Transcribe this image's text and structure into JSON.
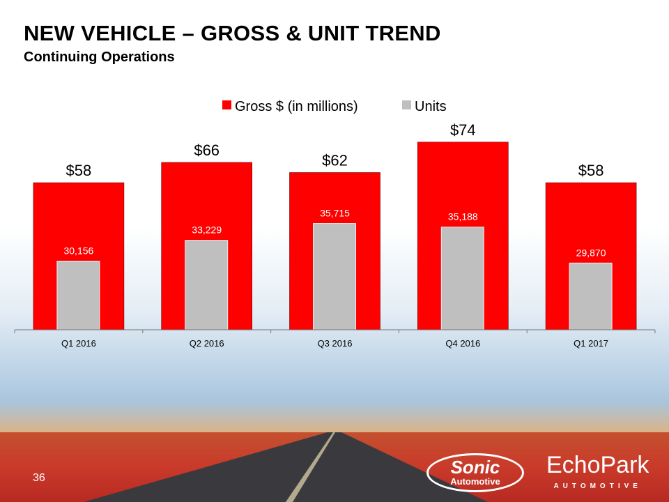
{
  "slide": {
    "title": "NEW VEHICLE – GROSS & UNIT TREND",
    "subtitle": "Continuing Operations",
    "page_number": "36"
  },
  "logos": {
    "sonic": "Sonic",
    "sonic_sub": "Automotive",
    "echopark": "EchoPark",
    "echopark_sub": "AUTOMOTIVE"
  },
  "chart_data": {
    "type": "bar",
    "categories": [
      "Q1 2016",
      "Q2 2016",
      "Q3 2016",
      "Q4 2016",
      "Q1 2017"
    ],
    "series": [
      {
        "name": "Gross $ (in millions)",
        "values": [
          58,
          66,
          62,
          74,
          58
        ],
        "labels": [
          "$58",
          "$66",
          "$62",
          "$74",
          "$58"
        ],
        "color": "#ff0000",
        "axis": "primary",
        "ylim": [
          0,
          80
        ]
      },
      {
        "name": "Units",
        "values": [
          30156,
          33229,
          35715,
          35188,
          29870
        ],
        "labels": [
          "30,156",
          "33,229",
          "35,715",
          "35,188",
          "29,870"
        ],
        "color": "#bfbfbf",
        "axis": "secondary",
        "ylim": [
          20000,
          50000
        ]
      }
    ],
    "legend": "top-center",
    "grid": false
  }
}
